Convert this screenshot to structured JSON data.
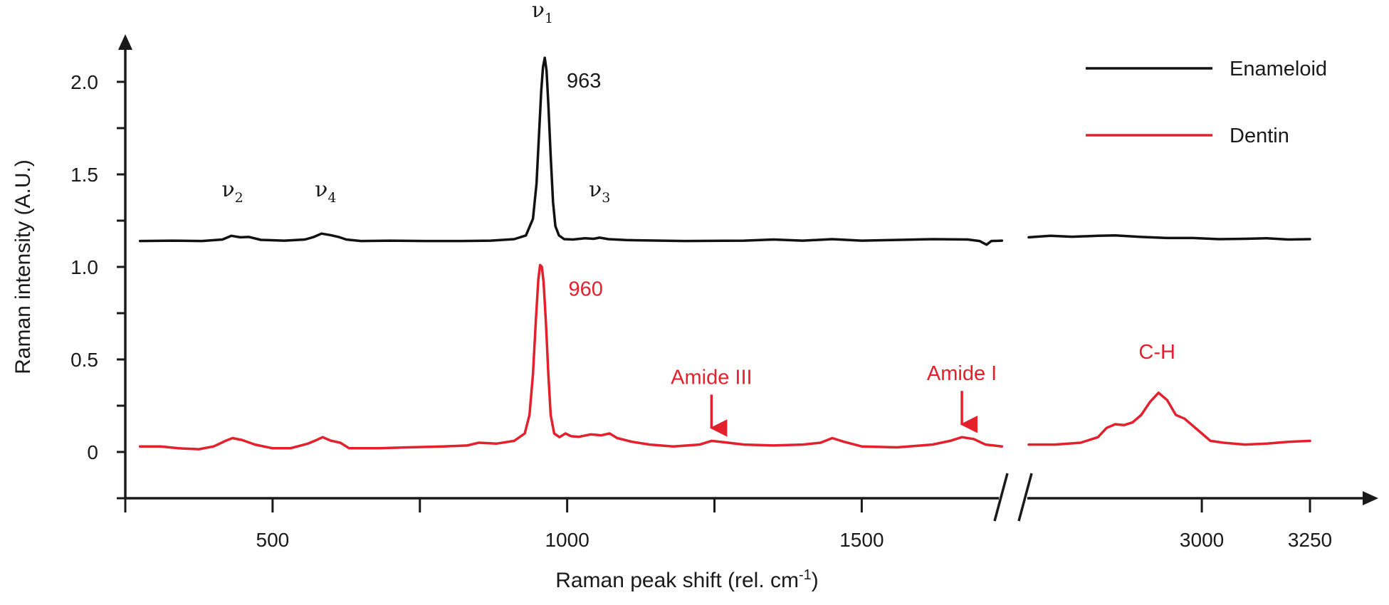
{
  "colors": {
    "enameloid": "#111111",
    "dentin": "#e3202b",
    "axis": "#1a1a1a"
  },
  "chart_data": {
    "type": "line",
    "xlabel": "Raman peak shift (rel. cm",
    "xlabel_sup": "-1",
    "xlabel_end": ")",
    "ylabel": "Raman intensity (A.U.)",
    "ylim": [
      -0.25,
      2.25
    ],
    "x_axis_break": {
      "after": 1740,
      "before": 2600
    },
    "x_segments": [
      [
        250,
        1740
      ],
      [
        2600,
        3250
      ]
    ],
    "x_tick_labels": [
      {
        "x": 500,
        "label": "500"
      },
      {
        "x": 1000,
        "label": "1000"
      },
      {
        "x": 1500,
        "label": "1500"
      },
      {
        "x": 3000,
        "label": "3000"
      },
      {
        "x": 3250,
        "label": "3250"
      }
    ],
    "x_minor_ticks": [
      250,
      750,
      1250
    ],
    "y_tick_labels": [
      {
        "y": 0,
        "label": "0"
      },
      {
        "y": 0.5,
        "label": "0.5"
      },
      {
        "y": 1.0,
        "label": "1.0"
      },
      {
        "y": 1.5,
        "label": "1.5"
      },
      {
        "y": 2.0,
        "label": "2.0"
      }
    ],
    "y_minor_ticks": [
      -0.25,
      0.25,
      0.75,
      1.25,
      1.75
    ],
    "legend_position": "top-right",
    "series": [
      {
        "name": "Enameloid",
        "color": "#111111",
        "points": [
          [
            275,
            1.14
          ],
          [
            330,
            1.142
          ],
          [
            380,
            1.14
          ],
          [
            415,
            1.148
          ],
          [
            430,
            1.168
          ],
          [
            445,
            1.16
          ],
          [
            460,
            1.162
          ],
          [
            480,
            1.146
          ],
          [
            520,
            1.142
          ],
          [
            555,
            1.148
          ],
          [
            570,
            1.162
          ],
          [
            583,
            1.18
          ],
          [
            598,
            1.172
          ],
          [
            612,
            1.162
          ],
          [
            625,
            1.148
          ],
          [
            650,
            1.14
          ],
          [
            700,
            1.142
          ],
          [
            760,
            1.14
          ],
          [
            820,
            1.14
          ],
          [
            870,
            1.142
          ],
          [
            910,
            1.15
          ],
          [
            930,
            1.17
          ],
          [
            942,
            1.26
          ],
          [
            948,
            1.45
          ],
          [
            952,
            1.7
          ],
          [
            956,
            1.95
          ],
          [
            959,
            2.08
          ],
          [
            962,
            2.13
          ],
          [
            965,
            2.06
          ],
          [
            968,
            1.88
          ],
          [
            972,
            1.6
          ],
          [
            976,
            1.35
          ],
          [
            980,
            1.22
          ],
          [
            986,
            1.17
          ],
          [
            995,
            1.15
          ],
          [
            1010,
            1.148
          ],
          [
            1030,
            1.155
          ],
          [
            1045,
            1.152
          ],
          [
            1055,
            1.158
          ],
          [
            1070,
            1.15
          ],
          [
            1100,
            1.145
          ],
          [
            1200,
            1.14
          ],
          [
            1300,
            1.142
          ],
          [
            1350,
            1.148
          ],
          [
            1400,
            1.142
          ],
          [
            1450,
            1.15
          ],
          [
            1500,
            1.142
          ],
          [
            1550,
            1.145
          ],
          [
            1620,
            1.15
          ],
          [
            1680,
            1.148
          ],
          [
            1700,
            1.14
          ],
          [
            1712,
            1.12
          ],
          [
            1720,
            1.14
          ],
          [
            1738,
            1.142
          ],
          null,
          [
            2600,
            1.16
          ],
          [
            2650,
            1.168
          ],
          [
            2700,
            1.163
          ],
          [
            2760,
            1.168
          ],
          [
            2800,
            1.17
          ],
          [
            2860,
            1.162
          ],
          [
            2920,
            1.156
          ],
          [
            2980,
            1.156
          ],
          [
            3040,
            1.15
          ],
          [
            3100,
            1.152
          ],
          [
            3150,
            1.155
          ],
          [
            3200,
            1.148
          ],
          [
            3250,
            1.15
          ]
        ]
      },
      {
        "name": "Dentin",
        "color": "#e3202b",
        "points": [
          [
            275,
            0.03
          ],
          [
            310,
            0.03
          ],
          [
            340,
            0.02
          ],
          [
            375,
            0.015
          ],
          [
            400,
            0.03
          ],
          [
            420,
            0.06
          ],
          [
            432,
            0.075
          ],
          [
            448,
            0.065
          ],
          [
            470,
            0.04
          ],
          [
            500,
            0.02
          ],
          [
            530,
            0.02
          ],
          [
            560,
            0.045
          ],
          [
            575,
            0.065
          ],
          [
            585,
            0.08
          ],
          [
            598,
            0.062
          ],
          [
            615,
            0.05
          ],
          [
            630,
            0.02
          ],
          [
            680,
            0.02
          ],
          [
            730,
            0.025
          ],
          [
            790,
            0.03
          ],
          [
            830,
            0.035
          ],
          [
            850,
            0.05
          ],
          [
            880,
            0.045
          ],
          [
            910,
            0.06
          ],
          [
            928,
            0.1
          ],
          [
            936,
            0.2
          ],
          [
            942,
            0.42
          ],
          [
            947,
            0.72
          ],
          [
            951,
            0.93
          ],
          [
            954,
            1.01
          ],
          [
            957,
            1.0
          ],
          [
            960,
            0.92
          ],
          [
            964,
            0.7
          ],
          [
            968,
            0.42
          ],
          [
            972,
            0.2
          ],
          [
            978,
            0.1
          ],
          [
            987,
            0.08
          ],
          [
            997,
            0.1
          ],
          [
            1007,
            0.085
          ],
          [
            1020,
            0.082
          ],
          [
            1040,
            0.095
          ],
          [
            1058,
            0.09
          ],
          [
            1072,
            0.1
          ],
          [
            1085,
            0.075
          ],
          [
            1110,
            0.055
          ],
          [
            1140,
            0.04
          ],
          [
            1180,
            0.03
          ],
          [
            1225,
            0.04
          ],
          [
            1245,
            0.06
          ],
          [
            1260,
            0.055
          ],
          [
            1300,
            0.04
          ],
          [
            1350,
            0.035
          ],
          [
            1400,
            0.04
          ],
          [
            1430,
            0.05
          ],
          [
            1450,
            0.075
          ],
          [
            1470,
            0.055
          ],
          [
            1500,
            0.03
          ],
          [
            1560,
            0.025
          ],
          [
            1620,
            0.04
          ],
          [
            1650,
            0.06
          ],
          [
            1670,
            0.08
          ],
          [
            1690,
            0.07
          ],
          [
            1710,
            0.04
          ],
          [
            1738,
            0.03
          ],
          null,
          [
            2600,
            0.04
          ],
          [
            2660,
            0.04
          ],
          [
            2720,
            0.05
          ],
          [
            2760,
            0.08
          ],
          [
            2780,
            0.13
          ],
          [
            2800,
            0.15
          ],
          [
            2820,
            0.145
          ],
          [
            2840,
            0.16
          ],
          [
            2860,
            0.2
          ],
          [
            2880,
            0.27
          ],
          [
            2900,
            0.32
          ],
          [
            2920,
            0.28
          ],
          [
            2940,
            0.2
          ],
          [
            2960,
            0.18
          ],
          [
            2980,
            0.14
          ],
          [
            3000,
            0.1
          ],
          [
            3020,
            0.06
          ],
          [
            3050,
            0.05
          ],
          [
            3100,
            0.04
          ],
          [
            3150,
            0.045
          ],
          [
            3200,
            0.055
          ],
          [
            3250,
            0.06
          ]
        ]
      }
    ],
    "annotations": {
      "enameloid_peak": {
        "text": "963",
        "x": 963,
        "y": 2.13
      },
      "dentin_peak": {
        "text": "960",
        "x": 960,
        "y": 1.01
      },
      "nu": [
        {
          "base": "ν",
          "sub": "1",
          "x": 958,
          "y": 2.35
        },
        {
          "base": "ν",
          "sub": "2",
          "x": 432,
          "y": 1.38
        },
        {
          "base": "ν",
          "sub": "4",
          "x": 590,
          "y": 1.38
        },
        {
          "base": "ν",
          "sub": "3",
          "x": 1055,
          "y": 1.38
        }
      ],
      "arrows": [
        {
          "text": "Amide III",
          "x": 1245,
          "y": 0.06
        },
        {
          "text": "Amide I",
          "x": 1670,
          "y": 0.08
        }
      ],
      "ch": {
        "text": "C-H",
        "x": 2880,
        "y": 0.32
      }
    }
  }
}
